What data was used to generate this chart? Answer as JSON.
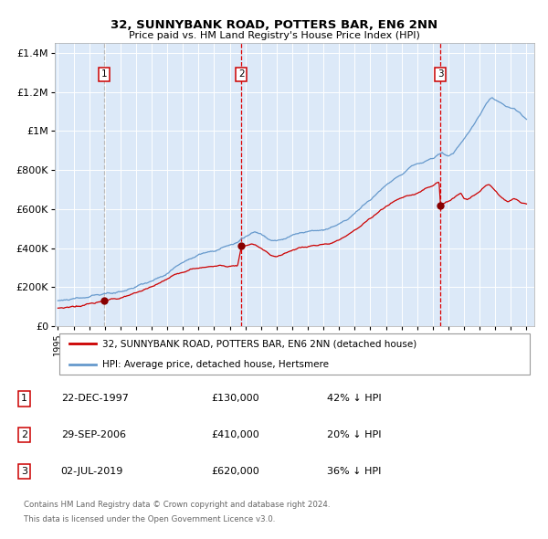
{
  "title": "32, SUNNYBANK ROAD, POTTERS BAR, EN6 2NN",
  "subtitle": "Price paid vs. HM Land Registry's House Price Index (HPI)",
  "legend_line1": "32, SUNNYBANK ROAD, POTTERS BAR, EN6 2NN (detached house)",
  "legend_line2": "HPI: Average price, detached house, Hertsmere",
  "table_rows": [
    {
      "num": "1",
      "date": "22-DEC-1997",
      "price": "£130,000",
      "hpi": "42% ↓ HPI"
    },
    {
      "num": "2",
      "date": "29-SEP-2006",
      "price": "£410,000",
      "hpi": "20% ↓ HPI"
    },
    {
      "num": "3",
      "date": "02-JUL-2019",
      "price": "£620,000",
      "hpi": "36% ↓ HPI"
    }
  ],
  "footer1": "Contains HM Land Registry data © Crown copyright and database right 2024.",
  "footer2": "This data is licensed under the Open Government Licence v3.0.",
  "sale_dates_decimal": [
    1997.975,
    2006.747,
    2019.497
  ],
  "sale_prices": [
    130000,
    410000,
    620000
  ],
  "vline_dates": [
    1997.975,
    2006.747,
    2019.497
  ],
  "vline_labels": [
    "1",
    "2",
    "3"
  ],
  "bg_color": "#dce9f8",
  "red_line_color": "#cc0000",
  "blue_line_color": "#6699cc",
  "vline_color": "#dd0000",
  "grid_color": "#ffffff",
  "ylim_max": 1450000,
  "yticks": [
    0,
    200000,
    400000,
    600000,
    800000,
    1000000,
    1200000,
    1400000
  ],
  "ytick_labels": [
    "£0",
    "£200K",
    "£400K",
    "£600K",
    "£800K",
    "£1M",
    "£1.2M",
    "£1.4M"
  ],
  "xmin": 1994.8,
  "xmax": 2025.5,
  "xticks": [
    1995,
    1996,
    1997,
    1998,
    1999,
    2000,
    2001,
    2002,
    2003,
    2004,
    2005,
    2006,
    2007,
    2008,
    2009,
    2010,
    2011,
    2012,
    2013,
    2014,
    2015,
    2016,
    2017,
    2018,
    2019,
    2020,
    2021,
    2022,
    2023,
    2024,
    2025
  ]
}
